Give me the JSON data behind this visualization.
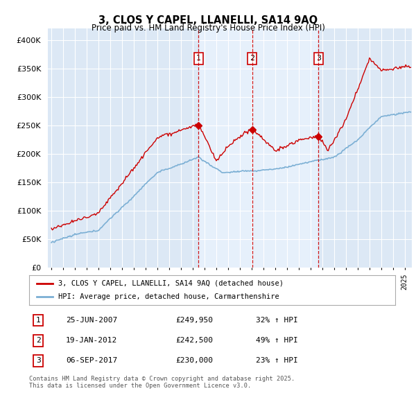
{
  "title": "3, CLOS Y CAPEL, LLANELLI, SA14 9AQ",
  "subtitle": "Price paid vs. HM Land Registry's House Price Index (HPI)",
  "legend_label_red": "3, CLOS Y CAPEL, LLANELLI, SA14 9AQ (detached house)",
  "legend_label_blue": "HPI: Average price, detached house, Carmarthenshire",
  "sale_info": [
    {
      "label": "1",
      "date": "25-JUN-2007",
      "price": "£249,950",
      "change": "32% ↑ HPI"
    },
    {
      "label": "2",
      "date": "19-JAN-2012",
      "price": "£242,500",
      "change": "49% ↑ HPI"
    },
    {
      "label": "3",
      "date": "06-SEP-2017",
      "price": "£230,000",
      "change": "23% ↑ HPI"
    }
  ],
  "sale_year_floats": [
    2007.48,
    2012.05,
    2017.68
  ],
  "sale_prices": [
    249950,
    242500,
    230000
  ],
  "footer": "Contains HM Land Registry data © Crown copyright and database right 2025.\nThis data is licensed under the Open Government Licence v3.0.",
  "ylim": [
    0,
    420000
  ],
  "yticks": [
    0,
    50000,
    100000,
    150000,
    200000,
    250000,
    300000,
    350000,
    400000
  ],
  "background_color": "#ffffff",
  "plot_bg_color": "#dce8f5",
  "grid_color": "#ffffff",
  "red_color": "#cc0000",
  "blue_color": "#7bafd4",
  "sale_bg_color": "#e8f2fc"
}
